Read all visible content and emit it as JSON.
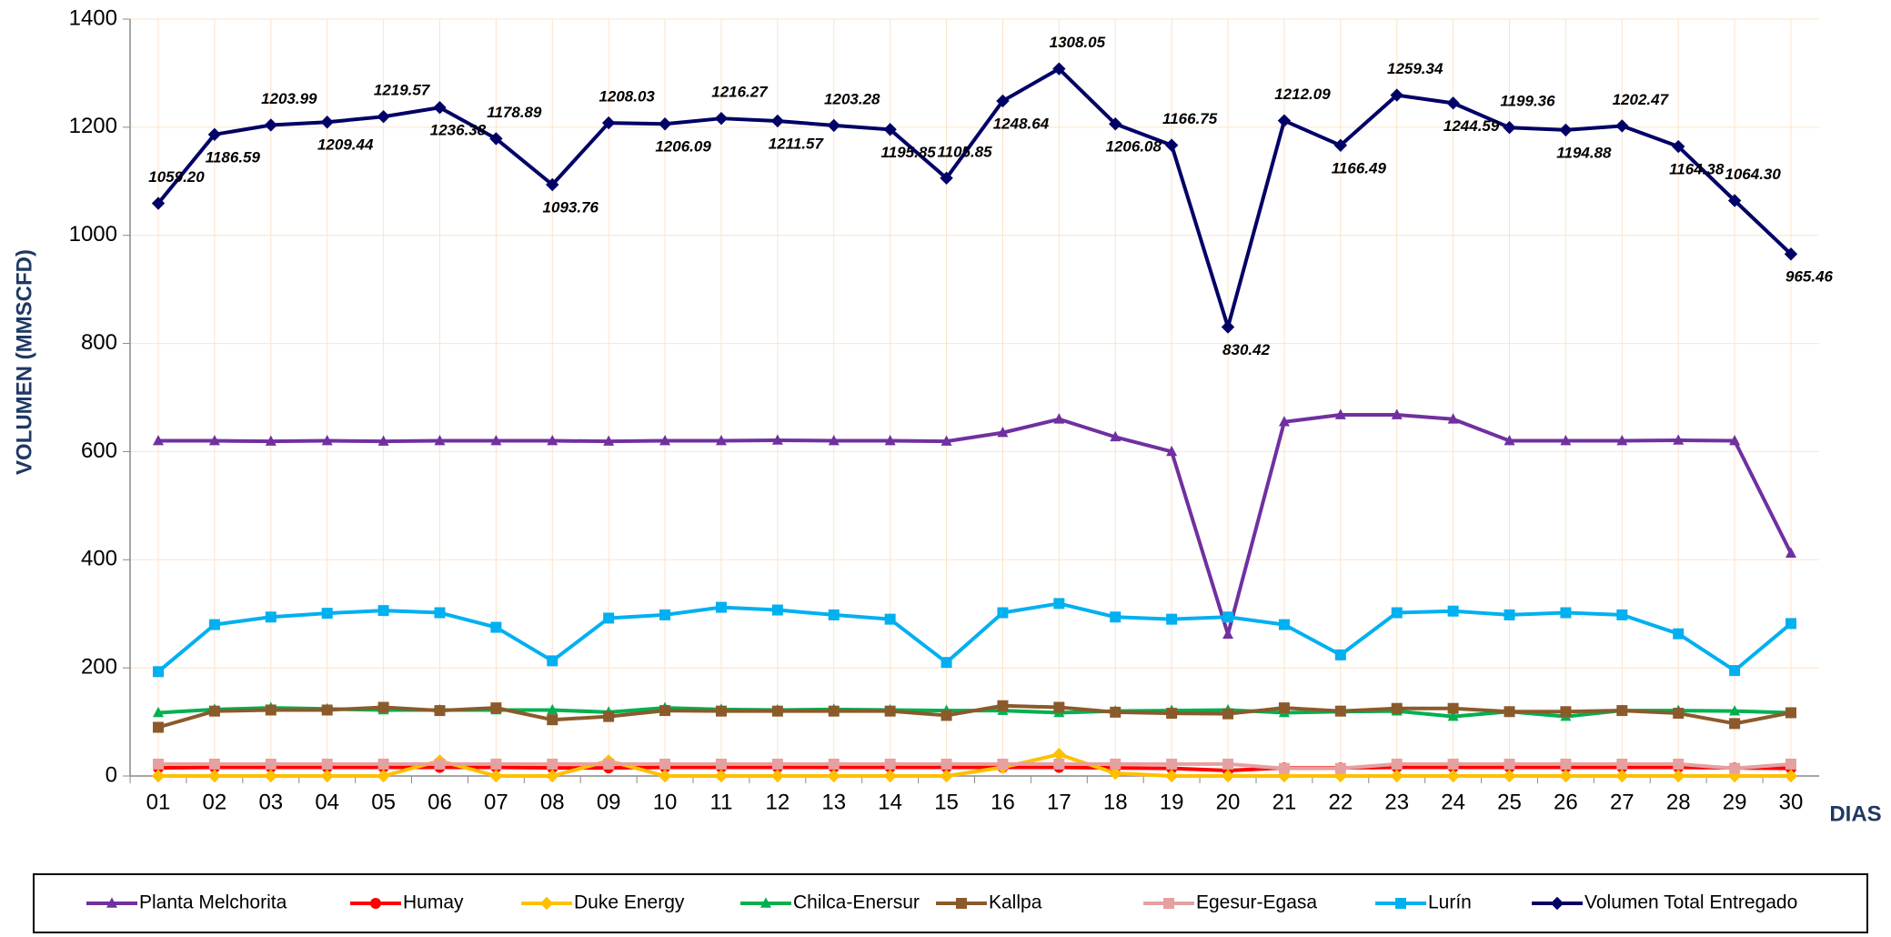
{
  "chart_data": {
    "type": "line",
    "y_label": "VOLUMEN (MMSCFD)",
    "x_label": "DIAS",
    "categories": [
      "01",
      "02",
      "03",
      "04",
      "05",
      "06",
      "07",
      "08",
      "09",
      "10",
      "11",
      "12",
      "13",
      "14",
      "15",
      "16",
      "17",
      "18",
      "19",
      "20",
      "21",
      "22",
      "23",
      "24",
      "25",
      "26",
      "27",
      "28",
      "29",
      "30"
    ],
    "ylim": [
      0,
      1400
    ],
    "yticks": [
      0,
      200,
      400,
      600,
      800,
      1000,
      1200,
      1400
    ],
    "grid": true,
    "series": [
      {
        "name": "Planta Melchorita",
        "color": "#7030a0",
        "marker": "triangle",
        "values": [
          620,
          620,
          619,
          620,
          619,
          620,
          620,
          620,
          619,
          620,
          620,
          621,
          620,
          620,
          619,
          635,
          660,
          627,
          600,
          262,
          655,
          668,
          668,
          660,
          620,
          620,
          620,
          621,
          620,
          412
        ]
      },
      {
        "name": "Humay",
        "color": "#ff0000",
        "marker": "circle",
        "values": [
          15,
          16,
          16,
          16,
          16,
          16,
          16,
          15,
          15,
          16,
          16,
          16,
          16,
          16,
          16,
          16,
          16,
          15,
          14,
          10,
          15,
          15,
          16,
          16,
          16,
          16,
          16,
          16,
          15,
          14
        ]
      },
      {
        "name": "Duke Energy",
        "color": "#ffc000",
        "marker": "diamond",
        "values": [
          0,
          0,
          0,
          0,
          0,
          28,
          0,
          0,
          28,
          0,
          0,
          0,
          0,
          0,
          0,
          16,
          40,
          5,
          0,
          0,
          0,
          0,
          0,
          0,
          0,
          0,
          0,
          0,
          0,
          0
        ]
      },
      {
        "name": "Chilca-Enersur",
        "color": "#00b050",
        "marker": "triangle",
        "values": [
          117,
          123,
          126,
          124,
          122,
          122,
          122,
          122,
          118,
          126,
          123,
          122,
          123,
          122,
          121,
          121,
          117,
          120,
          121,
          122,
          117,
          119,
          120,
          110,
          119,
          110,
          121,
          121,
          120,
          117
        ]
      },
      {
        "name": "Kallpa",
        "color": "#8b5a2b",
        "marker": "square",
        "values": [
          90,
          120,
          122,
          122,
          127,
          121,
          126,
          104,
          110,
          121,
          120,
          120,
          120,
          120,
          112,
          130,
          127,
          118,
          116,
          115,
          126,
          120,
          125,
          125,
          119,
          119,
          121,
          116,
          97,
          117
        ]
      },
      {
        "name": "Egesur-Egasa",
        "color": "#e6a0a0",
        "marker": "square",
        "values": [
          22,
          22,
          22,
          22,
          22,
          22,
          22,
          22,
          22,
          22,
          22,
          22,
          22,
          22,
          22,
          22,
          22,
          22,
          22,
          22,
          14,
          14,
          22,
          22,
          22,
          22,
          22,
          22,
          14,
          22
        ]
      },
      {
        "name": "Lurín",
        "color": "#00b0f0",
        "marker": "square",
        "values": [
          193,
          280,
          294,
          301,
          306,
          302,
          275,
          213,
          292,
          298,
          312,
          307,
          298,
          290,
          210,
          302,
          319,
          294,
          290,
          294,
          280,
          224,
          302,
          305,
          298,
          302,
          298,
          263,
          195,
          282
        ]
      },
      {
        "name": "Volumen Total Entregado",
        "color": "#000066",
        "marker": "diamond",
        "values": [
          1059.2,
          1186.59,
          1203.99,
          1209.44,
          1219.57,
          1236.38,
          1178.89,
          1093.76,
          1208.03,
          1206.09,
          1216.27,
          1211.57,
          1203.28,
          1195.85,
          1105.85,
          1248.64,
          1308.05,
          1206.08,
          1166.75,
          830.42,
          1212.09,
          1166.49,
          1259.34,
          1244.59,
          1199.36,
          1194.88,
          1202.47,
          1164.38,
          1064.3,
          965.46
        ],
        "value_labels": [
          "1059.20",
          "1186.59",
          "1203.99",
          "1209.44",
          "1219.57",
          "1236.38",
          "1178.89",
          "1093.76",
          "1208.03",
          "1206.09",
          "1216.27",
          "1211.57",
          "1203.28",
          "1195.85",
          "1105.85",
          "1248.64",
          "1308.05",
          "1206.08",
          "1166.75",
          "830.42",
          "1212.09",
          "1166.49",
          "1259.34",
          "1244.59",
          "1199.36",
          "1194.88",
          "1202.47",
          "1164.38",
          "1064.30",
          "965.46"
        ]
      }
    ]
  }
}
